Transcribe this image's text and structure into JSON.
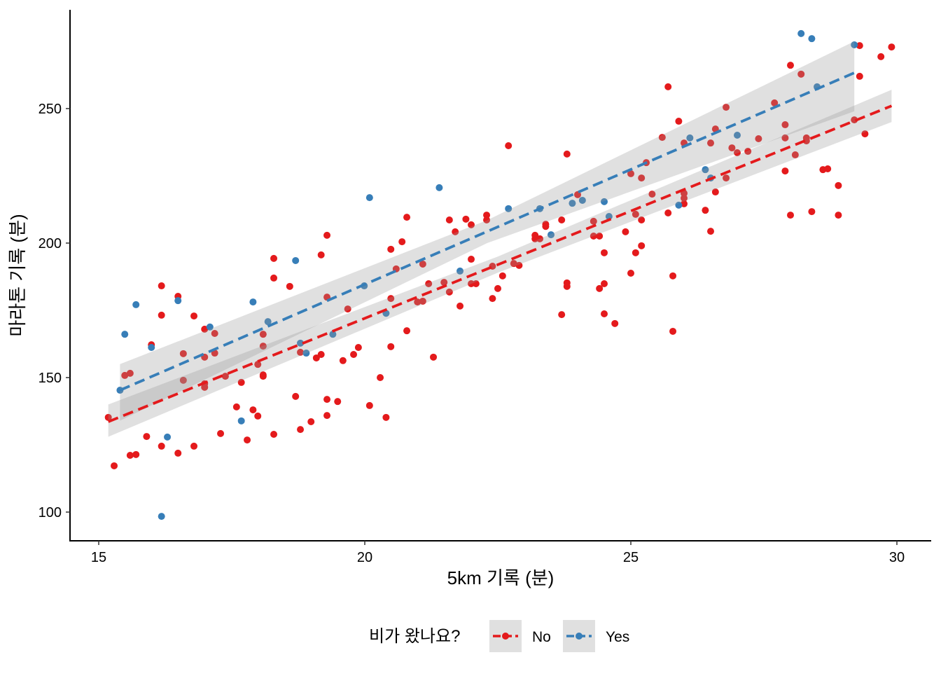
{
  "chart_data": {
    "type": "scatter",
    "title": "",
    "xlabel": "5km 기록 (분)",
    "ylabel": "마라톤 기록 (분)",
    "xlim": [
      14.46,
      30.64
    ],
    "ylim": [
      89.3,
      286.7
    ],
    "xticks": [
      15,
      20,
      25,
      30
    ],
    "yticks": [
      100,
      150,
      200,
      250
    ],
    "grid": false,
    "legend": {
      "title": "비가 왔나요?",
      "placement": "bottom",
      "entries": [
        "No",
        "Yes"
      ]
    },
    "series": [
      {
        "name": "No",
        "color": "#E41A1C",
        "points": [
          [
            15.18,
            135.2
          ],
          [
            15.29,
            117.2
          ],
          [
            15.49,
            150.8
          ],
          [
            15.59,
            151.6
          ],
          [
            15.59,
            121.1
          ],
          [
            15.7,
            121.4
          ],
          [
            15.9,
            128.1
          ],
          [
            15.99,
            162.2
          ],
          [
            16.18,
            184.1
          ],
          [
            16.18,
            173.2
          ],
          [
            16.18,
            124.5
          ],
          [
            16.49,
            180.2
          ],
          [
            16.49,
            121.9
          ],
          [
            16.59,
            158.9
          ],
          [
            16.59,
            149.0
          ],
          [
            16.79,
            172.9
          ],
          [
            16.79,
            124.5
          ],
          [
            16.99,
            168.0
          ],
          [
            16.99,
            157.6
          ],
          [
            16.99,
            147.7
          ],
          [
            16.99,
            146.4
          ],
          [
            17.18,
            166.4
          ],
          [
            17.18,
            159.1
          ],
          [
            17.29,
            129.2
          ],
          [
            17.38,
            150.5
          ],
          [
            17.59,
            139.1
          ],
          [
            17.68,
            148.2
          ],
          [
            17.79,
            126.8
          ],
          [
            17.9,
            138.0
          ],
          [
            17.99,
            135.7
          ],
          [
            17.99,
            154.9
          ],
          [
            18.09,
            166.1
          ],
          [
            18.09,
            161.7
          ],
          [
            18.09,
            151.0
          ],
          [
            18.09,
            150.5
          ],
          [
            18.29,
            194.3
          ],
          [
            18.29,
            187.0
          ],
          [
            18.29,
            128.9
          ],
          [
            18.59,
            183.9
          ],
          [
            18.7,
            143.0
          ],
          [
            18.79,
            130.7
          ],
          [
            18.79,
            159.4
          ],
          [
            18.99,
            133.6
          ],
          [
            19.09,
            157.3
          ],
          [
            19.18,
            158.6
          ],
          [
            19.18,
            195.6
          ],
          [
            19.29,
            202.9
          ],
          [
            19.29,
            179.9
          ],
          [
            19.29,
            141.9
          ],
          [
            19.29,
            135.9
          ],
          [
            19.49,
            141.1
          ],
          [
            19.59,
            156.3
          ],
          [
            19.68,
            175.5
          ],
          [
            19.79,
            158.6
          ],
          [
            19.88,
            161.2
          ],
          [
            20.09,
            139.6
          ],
          [
            20.29,
            150.0
          ],
          [
            20.4,
            135.2
          ],
          [
            20.49,
            197.7
          ],
          [
            20.49,
            179.4
          ],
          [
            20.49,
            161.5
          ],
          [
            20.59,
            190.4
          ],
          [
            20.7,
            200.5
          ],
          [
            20.79,
            209.6
          ],
          [
            20.79,
            167.4
          ],
          [
            20.99,
            178.1
          ],
          [
            21.09,
            192.2
          ],
          [
            21.09,
            178.4
          ],
          [
            21.2,
            184.9
          ],
          [
            21.29,
            157.6
          ],
          [
            21.49,
            185.4
          ],
          [
            21.59,
            208.6
          ],
          [
            21.59,
            181.8
          ],
          [
            21.7,
            204.2
          ],
          [
            21.79,
            176.6
          ],
          [
            21.9,
            208.9
          ],
          [
            22.0,
            184.9
          ],
          [
            22.0,
            206.8
          ],
          [
            22.0,
            194.0
          ],
          [
            22.09,
            184.9
          ],
          [
            22.29,
            210.4
          ],
          [
            22.29,
            208.6
          ],
          [
            22.4,
            191.4
          ],
          [
            22.4,
            179.4
          ],
          [
            22.5,
            183.1
          ],
          [
            22.59,
            187.8
          ],
          [
            22.7,
            236.2
          ],
          [
            22.8,
            192.4
          ],
          [
            22.9,
            191.7
          ],
          [
            23.2,
            202.9
          ],
          [
            23.2,
            201.6
          ],
          [
            23.29,
            201.6
          ],
          [
            23.4,
            206.2
          ],
          [
            23.4,
            207.0
          ],
          [
            23.7,
            173.4
          ],
          [
            23.7,
            208.6
          ],
          [
            23.8,
            185.2
          ],
          [
            23.8,
            183.9
          ],
          [
            23.8,
            233.1
          ],
          [
            24.0,
            218.0
          ],
          [
            24.3,
            208.1
          ],
          [
            24.3,
            202.6
          ],
          [
            24.41,
            202.6
          ],
          [
            24.41,
            183.1
          ],
          [
            24.5,
            196.4
          ],
          [
            24.5,
            184.9
          ],
          [
            24.5,
            173.7
          ],
          [
            24.7,
            170.1
          ],
          [
            24.9,
            204.2
          ],
          [
            25.0,
            188.8
          ],
          [
            25.0,
            225.8
          ],
          [
            25.09,
            210.7
          ],
          [
            25.09,
            196.4
          ],
          [
            25.2,
            199.0
          ],
          [
            25.2,
            208.6
          ],
          [
            25.2,
            224.2
          ],
          [
            25.29,
            229.9
          ],
          [
            25.4,
            218.2
          ],
          [
            25.59,
            239.3
          ],
          [
            25.7,
            211.2
          ],
          [
            25.7,
            258.1
          ],
          [
            25.79,
            187.8
          ],
          [
            25.79,
            167.2
          ],
          [
            25.9,
            245.3
          ],
          [
            26.0,
            237.2
          ],
          [
            26.0,
            218.5
          ],
          [
            26.0,
            216.7
          ],
          [
            26.0,
            214.6
          ],
          [
            26.4,
            212.2
          ],
          [
            26.5,
            237.2
          ],
          [
            26.5,
            204.4
          ],
          [
            26.59,
            242.4
          ],
          [
            26.59,
            219.0
          ],
          [
            26.79,
            224.2
          ],
          [
            26.79,
            250.5
          ],
          [
            26.9,
            235.4
          ],
          [
            27.0,
            233.6
          ],
          [
            27.2,
            234.1
          ],
          [
            27.4,
            238.8
          ],
          [
            27.7,
            252.1
          ],
          [
            27.9,
            244.0
          ],
          [
            27.9,
            239.1
          ],
          [
            27.9,
            226.8
          ],
          [
            28.0,
            266.1
          ],
          [
            28.0,
            210.4
          ],
          [
            28.09,
            232.8
          ],
          [
            28.2,
            262.8
          ],
          [
            28.3,
            239.1
          ],
          [
            28.3,
            238.0
          ],
          [
            28.4,
            211.7
          ],
          [
            28.61,
            227.3
          ],
          [
            28.7,
            227.6
          ],
          [
            28.9,
            221.4
          ],
          [
            28.9,
            210.4
          ],
          [
            29.2,
            245.8
          ],
          [
            29.3,
            273.4
          ],
          [
            29.3,
            262.0
          ],
          [
            29.4,
            240.6
          ],
          [
            29.7,
            269.3
          ],
          [
            29.9,
            272.9
          ]
        ],
        "fit": {
          "x": [
            15.18,
            29.9
          ],
          "y": [
            133.6,
            251.0
          ]
        },
        "ci": [
          [
            15.18,
            128,
            140
          ],
          [
            22.5,
            189,
            195
          ],
          [
            29.9,
            245,
            257
          ]
        ]
      },
      {
        "name": "Yes",
        "color": "#377EB8",
        "points": [
          [
            15.4,
            145.3
          ],
          [
            15.49,
            166.1
          ],
          [
            15.7,
            177.1
          ],
          [
            15.99,
            161.2
          ],
          [
            16.18,
            98.4
          ],
          [
            16.29,
            127.9
          ],
          [
            16.49,
            178.6
          ],
          [
            17.09,
            168.8
          ],
          [
            17.68,
            133.9
          ],
          [
            17.9,
            178.1
          ],
          [
            18.18,
            170.8
          ],
          [
            18.7,
            193.5
          ],
          [
            18.79,
            162.8
          ],
          [
            18.9,
            159.1
          ],
          [
            19.4,
            166.1
          ],
          [
            19.99,
            184.1
          ],
          [
            20.09,
            216.9
          ],
          [
            20.4,
            173.9
          ],
          [
            21.4,
            220.6
          ],
          [
            21.79,
            189.6
          ],
          [
            22.7,
            212.8
          ],
          [
            23.29,
            212.8
          ],
          [
            23.5,
            203.1
          ],
          [
            23.9,
            214.8
          ],
          [
            24.09,
            215.9
          ],
          [
            24.5,
            215.4
          ],
          [
            24.59,
            209.9
          ],
          [
            25.9,
            214.1
          ],
          [
            26.11,
            239.1
          ],
          [
            26.4,
            227.3
          ],
          [
            26.5,
            224.2
          ],
          [
            27.0,
            240.1
          ],
          [
            28.2,
            277.9
          ],
          [
            28.4,
            276.0
          ],
          [
            28.5,
            258.1
          ],
          [
            29.2,
            273.7
          ]
        ],
        "fit": {
          "x": [
            15.4,
            29.2
          ],
          "y": [
            145.3,
            263.3
          ]
        },
        "ci": [
          [
            15.4,
            134,
            155
          ],
          [
            22.3,
            200,
            208.5
          ],
          [
            29.2,
            249,
            275
          ]
        ]
      }
    ]
  }
}
